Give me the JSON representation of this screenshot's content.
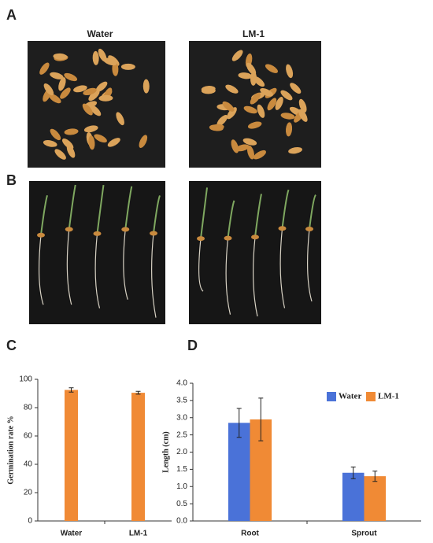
{
  "figure": {
    "panel_labels": [
      "A",
      "B",
      "C",
      "D"
    ],
    "photo_labels": [
      "Water",
      "LM-1"
    ]
  },
  "chart_data": [
    {
      "type": "bar",
      "ylabel": "Germination rate %",
      "categories": [
        "Water",
        "LM-1"
      ],
      "values": [
        92.5,
        90.5
      ],
      "errors": [
        1.5,
        1
      ],
      "color": "#f08a35",
      "ylim": [
        0,
        100
      ],
      "yticks": [
        0,
        20,
        40,
        60,
        80,
        100
      ]
    },
    {
      "type": "bar",
      "ylabel": "Length (cm)",
      "categories": [
        "Root",
        "Sprout"
      ],
      "series": [
        {
          "name": "Water",
          "color": "#4a72d8",
          "values": [
            2.85,
            1.4
          ],
          "errors": [
            0.42,
            0.17
          ]
        },
        {
          "name": "LM-1",
          "color": "#f08a35",
          "values": [
            2.95,
            1.3
          ],
          "errors": [
            0.62,
            0.15
          ]
        }
      ],
      "ylim": [
        0,
        4
      ],
      "yticks": [
        {
          "value": 0,
          "label": "0.0"
        },
        {
          "value": 0.5,
          "label": "0.5"
        },
        {
          "value": 1,
          "label": "1.0"
        },
        {
          "value": 1.5,
          "label": "1.5"
        },
        {
          "value": 2,
          "label": "2.0"
        },
        {
          "value": 2.5,
          "label": "2.5"
        },
        {
          "value": 3,
          "label": "3.0"
        },
        {
          "value": 3.5,
          "label": "3.5"
        },
        {
          "value": 4,
          "label": "4.0"
        }
      ],
      "legend": "upper-right"
    }
  ]
}
